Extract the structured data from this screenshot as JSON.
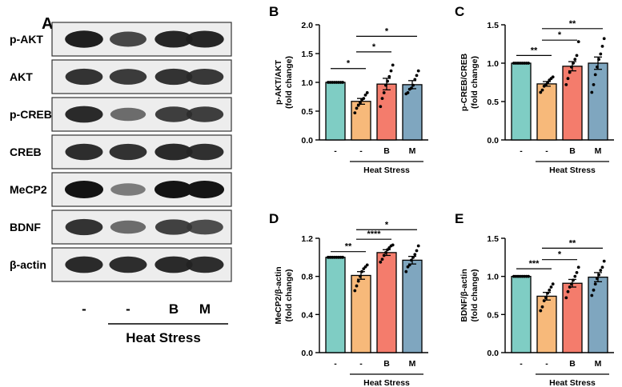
{
  "panel_a": {
    "letter": "A",
    "rows": [
      {
        "label": "p-AKT",
        "band_strength": [
          0.95,
          0.75,
          0.92,
          0.92
        ]
      },
      {
        "label": "AKT",
        "band_strength": [
          0.85,
          0.82,
          0.85,
          0.83
        ]
      },
      {
        "label": "p-CREB",
        "band_strength": [
          0.9,
          0.55,
          0.8,
          0.8
        ]
      },
      {
        "label": "CREB",
        "band_strength": [
          0.88,
          0.86,
          0.9,
          0.87
        ]
      },
      {
        "label": "MeCP2",
        "band_strength": [
          1.0,
          0.45,
          1.0,
          1.0
        ]
      },
      {
        "label": "BDNF",
        "band_strength": [
          0.85,
          0.55,
          0.78,
          0.72
        ]
      },
      {
        "label": "β-actin",
        "band_strength": [
          0.9,
          0.88,
          0.9,
          0.88
        ]
      }
    ],
    "lanes": [
      "-",
      "-",
      "B",
      "M"
    ],
    "group_label": "Heat Stress"
  },
  "colors": {
    "control": "#7fcdc4",
    "heat_stress": "#f7b97a",
    "b": "#f47c6c",
    "m": "#7fa6bf"
  },
  "chart_data": [
    {
      "id": "B",
      "letter": "B",
      "type": "bar",
      "categories": [
        "-",
        "-",
        "B",
        "M"
      ],
      "values": [
        1.0,
        0.67,
        0.97,
        0.96
      ],
      "sem": [
        0.0,
        0.05,
        0.1,
        0.07
      ],
      "points": [
        [
          1,
          1,
          1,
          1,
          1,
          1,
          1,
          1
        ],
        [
          0.47,
          0.55,
          0.6,
          0.65,
          0.7,
          0.72,
          0.78,
          0.82
        ],
        [
          0.58,
          0.72,
          0.82,
          0.95,
          1.02,
          1.1,
          1.2,
          1.3
        ],
        [
          0.8,
          0.82,
          0.88,
          0.9,
          0.95,
          1.05,
          1.12,
          1.2
        ]
      ],
      "ylabel": [
        "p-AKT/AKT",
        "(fold change)"
      ],
      "ylim": [
        0,
        2.0
      ],
      "yticks": [
        0.0,
        0.5,
        1.0,
        1.5,
        2.0
      ],
      "tick_labels": [
        "0.0",
        "0.5",
        "1.0",
        "1.5",
        "2.0"
      ],
      "group_label": "Heat Stress",
      "significance": [
        {
          "from": 0,
          "to": 1,
          "label": "*",
          "level": 1.24
        },
        {
          "from": 1,
          "to": 2,
          "label": "*",
          "level": 1.53
        },
        {
          "from": 1,
          "to": 3,
          "label": "*",
          "level": 1.8
        }
      ]
    },
    {
      "id": "C",
      "letter": "C",
      "type": "bar",
      "categories": [
        "-",
        "-",
        "B",
        "M"
      ],
      "values": [
        1.0,
        0.73,
        0.96,
        1.0
      ],
      "sem": [
        0.0,
        0.03,
        0.06,
        0.08
      ],
      "points": [
        [
          1,
          1,
          1,
          1,
          1,
          1,
          1,
          1
        ],
        [
          0.62,
          0.65,
          0.7,
          0.72,
          0.75,
          0.78,
          0.8,
          0.82
        ],
        [
          0.72,
          0.8,
          0.88,
          0.95,
          1.0,
          1.05,
          1.1,
          1.28
        ],
        [
          0.62,
          0.72,
          0.85,
          0.95,
          1.05,
          1.12,
          1.22,
          1.32
        ]
      ],
      "ylabel": [
        "p-CREB/CREB",
        "(fold change)"
      ],
      "ylim": [
        0,
        1.5
      ],
      "yticks": [
        0.0,
        0.5,
        1.0,
        1.5
      ],
      "tick_labels": [
        "0.0",
        "0.5",
        "1.0",
        "1.5"
      ],
      "group_label": "Heat Stress",
      "significance": [
        {
          "from": 0,
          "to": 1,
          "label": "**",
          "level": 1.1
        },
        {
          "from": 1,
          "to": 2,
          "label": "*",
          "level": 1.3
        },
        {
          "from": 1,
          "to": 3,
          "label": "**",
          "level": 1.45
        }
      ]
    },
    {
      "id": "D",
      "letter": "D",
      "type": "bar",
      "categories": [
        "-",
        "-",
        "B",
        "M"
      ],
      "values": [
        1.0,
        0.81,
        1.05,
        0.97
      ],
      "sem": [
        0.0,
        0.04,
        0.03,
        0.04
      ],
      "points": [
        [
          1,
          1,
          1,
          1,
          1,
          1,
          1,
          1
        ],
        [
          0.65,
          0.7,
          0.75,
          0.8,
          0.85,
          0.88,
          0.9,
          0.92
        ],
        [
          0.95,
          0.98,
          1.02,
          1.05,
          1.08,
          1.1,
          1.12,
          1.13
        ],
        [
          0.85,
          0.9,
          0.92,
          0.97,
          1.0,
          1.03,
          1.07,
          1.12
        ]
      ],
      "ylabel": [
        "MeCP2/β-actin",
        "(fold change)"
      ],
      "ylim": [
        0,
        1.2
      ],
      "yticks": [
        0.0,
        0.4,
        0.8,
        1.2
      ],
      "tick_labels": [
        "0.0",
        "0.4",
        "0.8",
        "1.2"
      ],
      "group_label": "Heat Stress",
      "significance": [
        {
          "from": 0,
          "to": 1,
          "label": "**",
          "level": 1.06
        },
        {
          "from": 1,
          "to": 2,
          "label": "****",
          "level": 1.19
        },
        {
          "from": 1,
          "to": 3,
          "label": "*",
          "level": 1.29
        }
      ]
    },
    {
      "id": "E",
      "letter": "E",
      "type": "bar",
      "categories": [
        "-",
        "-",
        "B",
        "M"
      ],
      "values": [
        1.0,
        0.74,
        0.91,
        0.99
      ],
      "sem": [
        0.0,
        0.05,
        0.05,
        0.06
      ],
      "points": [
        [
          1,
          1,
          1,
          1,
          1,
          1,
          1,
          1
        ],
        [
          0.55,
          0.6,
          0.68,
          0.72,
          0.78,
          0.82,
          0.86,
          0.9
        ],
        [
          0.72,
          0.8,
          0.86,
          0.9,
          0.95,
          1.0,
          1.05,
          1.12
        ],
        [
          0.75,
          0.82,
          0.9,
          0.97,
          1.02,
          1.08,
          1.12,
          1.2
        ]
      ],
      "ylabel": [
        "BDNF/β-actin",
        "(fold change)"
      ],
      "ylim": [
        0,
        1.5
      ],
      "yticks": [
        0.0,
        0.5,
        1.0,
        1.5
      ],
      "tick_labels": [
        "0.0",
        "0.5",
        "1.0",
        "1.5"
      ],
      "group_label": "Heat Stress",
      "significance": [
        {
          "from": 0,
          "to": 1,
          "label": "***",
          "level": 1.1
        },
        {
          "from": 1,
          "to": 2,
          "label": "*",
          "level": 1.22
        },
        {
          "from": 1,
          "to": 3,
          "label": "**",
          "level": 1.37
        }
      ]
    }
  ]
}
